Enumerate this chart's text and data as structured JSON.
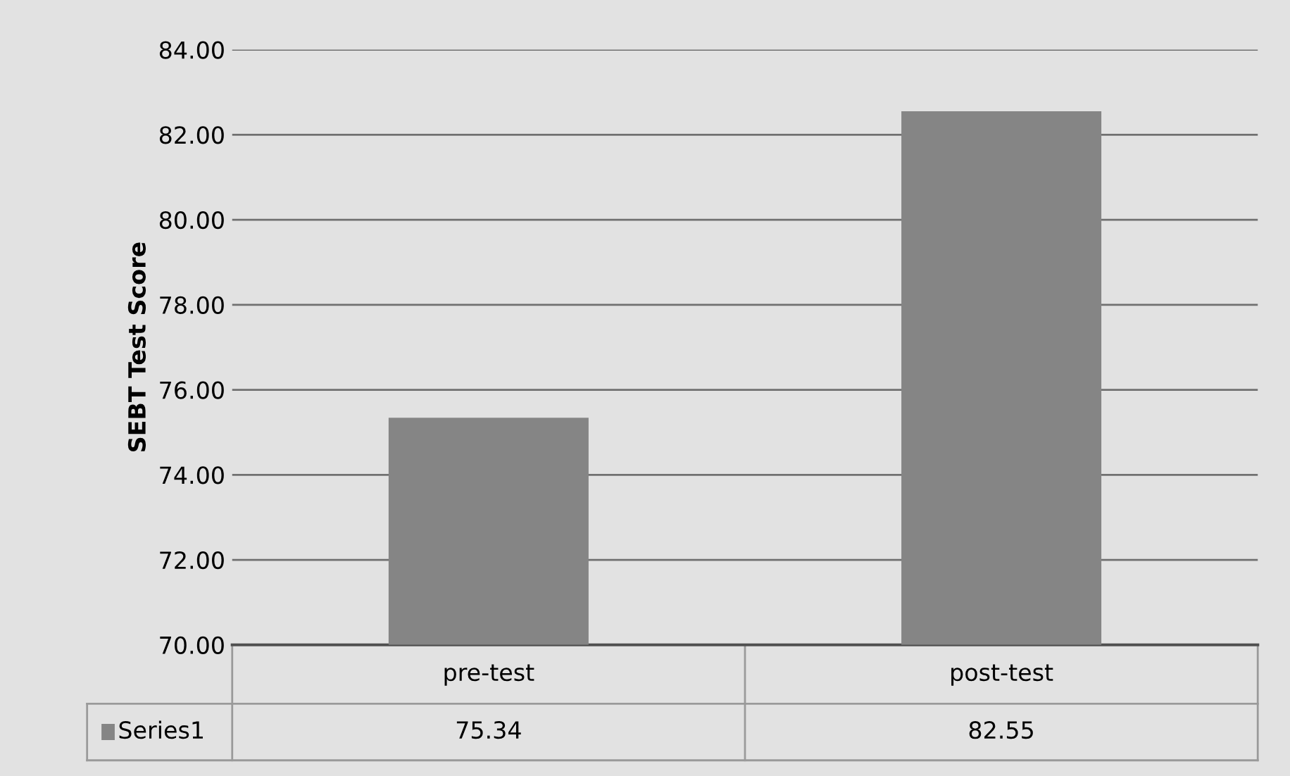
{
  "chart_data": {
    "type": "bar",
    "ylabel": "SEBT Test Score",
    "categories": [
      "pre-test",
      "post-test"
    ],
    "series": [
      {
        "name": "Series1",
        "color": "#858585",
        "values": [
          75.34,
          82.55
        ]
      }
    ],
    "ylim": [
      70,
      84
    ],
    "yticks": [
      {
        "value": 70,
        "label": "70.00"
      },
      {
        "value": 72,
        "label": "72.00"
      },
      {
        "value": 74,
        "label": "74.00"
      },
      {
        "value": 76,
        "label": "76.00"
      },
      {
        "value": 78,
        "label": "78.00"
      },
      {
        "value": 80,
        "label": "80.00"
      },
      {
        "value": 82,
        "label": "82.00"
      },
      {
        "value": 84,
        "label": "84.00"
      }
    ],
    "grid": "y",
    "data_labels": true,
    "legend": "bottom left"
  }
}
